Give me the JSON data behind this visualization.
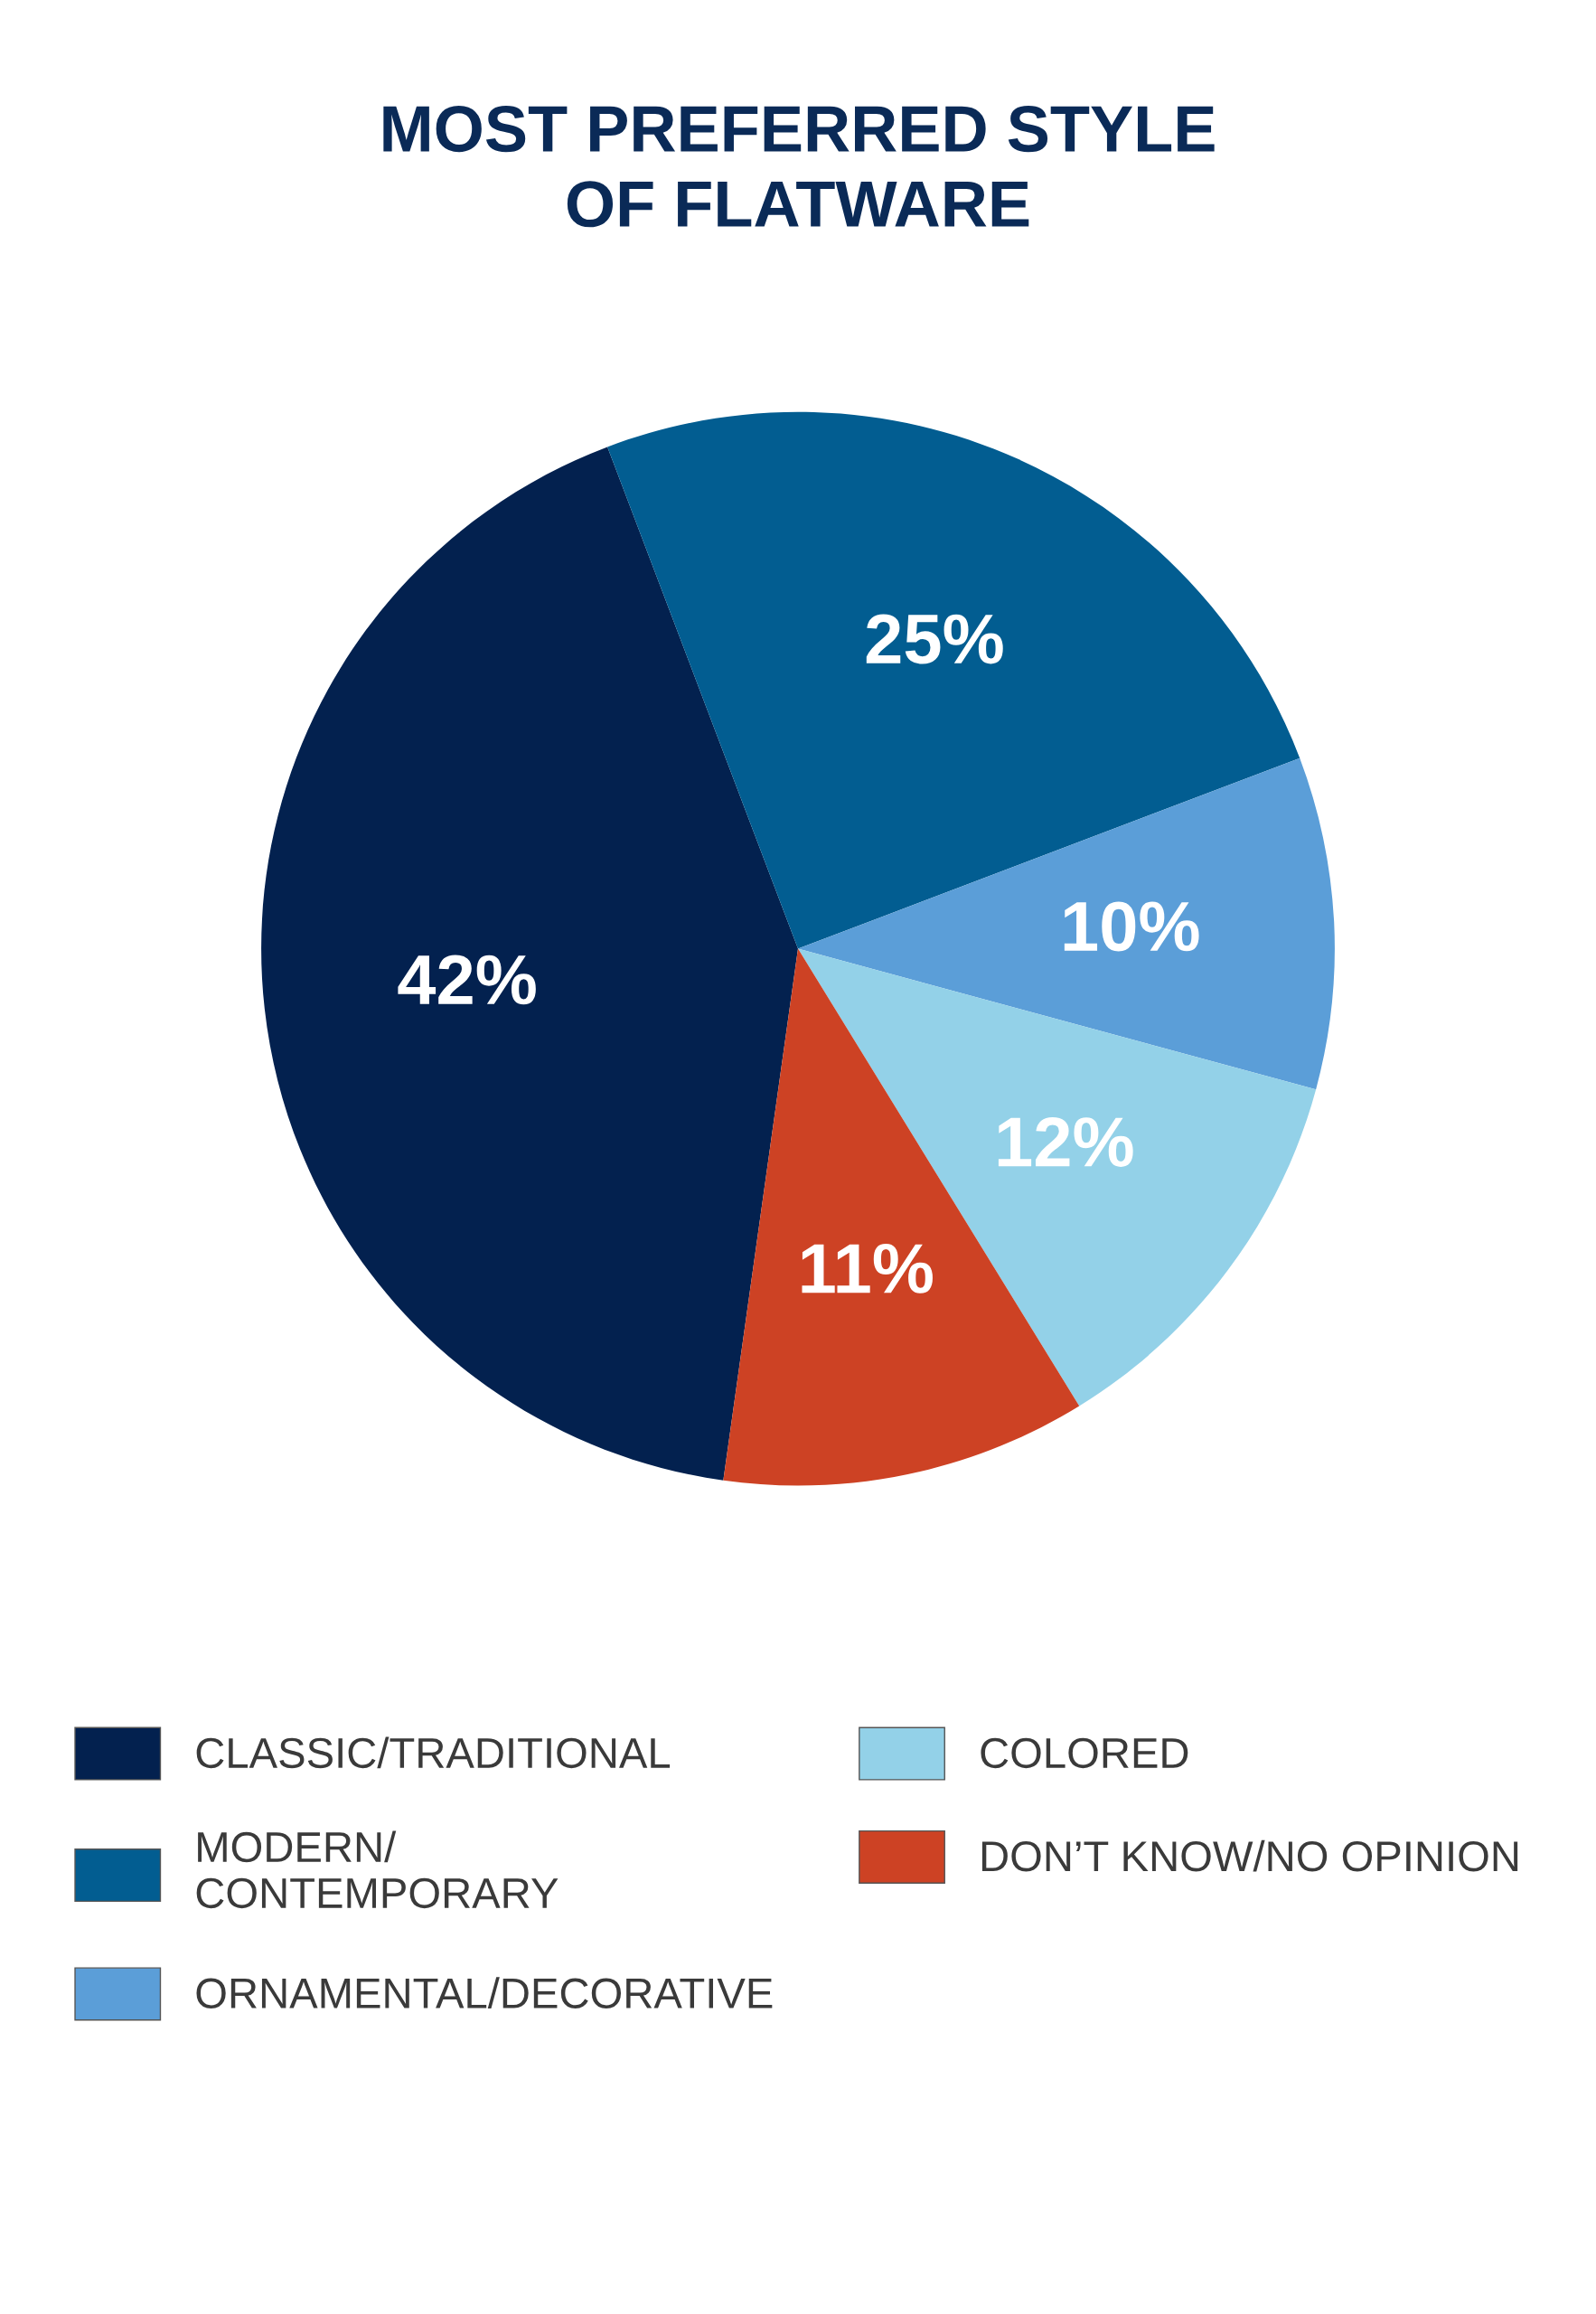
{
  "chart_data": {
    "type": "pie",
    "title": "MOST PREFERRED STYLE\nOF FLATWARE",
    "categories": [
      "CLASSIC/TRADITIONAL",
      "MODERN/\nCONTEMPORARY",
      "ORNAMENTAL/DECORATIVE",
      "COLORED",
      "DON’T KNOW/NO OPINION"
    ],
    "values": [
      42,
      25,
      10,
      12,
      11
    ],
    "value_labels": [
      "42%",
      "25%",
      "10%",
      "12%",
      "11%"
    ],
    "colors": [
      "#03214f",
      "#025d91",
      "#5b9ed8",
      "#93d1e8",
      "#cd4224"
    ],
    "legend": "bottom"
  }
}
